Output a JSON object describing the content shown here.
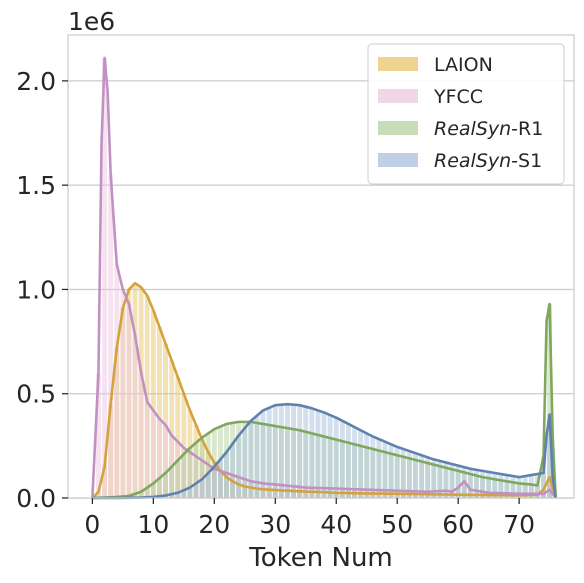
{
  "chart_data": {
    "type": "histogram+kde",
    "title": "",
    "xlabel": "Token Num",
    "ylabel": "",
    "y_offset_label": "1e6",
    "xlim": [
      -4,
      79
    ],
    "ylim": [
      0,
      2.22
    ],
    "xticks": [
      0,
      10,
      20,
      30,
      40,
      50,
      60,
      70
    ],
    "xtick_labels": [
      "0",
      "10",
      "20",
      "30",
      "40",
      "50",
      "60",
      "70"
    ],
    "yticks": [
      0.0,
      0.5,
      1.0,
      1.5,
      2.0
    ],
    "ytick_labels": [
      "0.0",
      "0.5",
      "1.0",
      "1.5",
      "2.0"
    ],
    "grid": true,
    "legend_position": "top-right",
    "series": [
      {
        "name": "LAION",
        "legend_parts": [
          {
            "text": "LAION",
            "italic": false
          }
        ],
        "fill": "#e8c56a",
        "line": "#d4a23c",
        "x": [
          0,
          1,
          2,
          3,
          4,
          5,
          6,
          7,
          8,
          9,
          10,
          11,
          12,
          13,
          14,
          15,
          16,
          17,
          18,
          19,
          20,
          21,
          22,
          23,
          24,
          25,
          26,
          27,
          28,
          29,
          30,
          32,
          34,
          36,
          38,
          40,
          45,
          50,
          55,
          60,
          65,
          70,
          73,
          74,
          75,
          76
        ],
        "values": [
          0.0,
          0.03,
          0.15,
          0.45,
          0.72,
          0.91,
          1.0,
          1.03,
          1.01,
          0.97,
          0.9,
          0.82,
          0.74,
          0.66,
          0.58,
          0.5,
          0.42,
          0.35,
          0.28,
          0.22,
          0.17,
          0.13,
          0.1,
          0.08,
          0.065,
          0.055,
          0.05,
          0.045,
          0.042,
          0.04,
          0.038,
          0.035,
          0.032,
          0.03,
          0.028,
          0.025,
          0.022,
          0.02,
          0.018,
          0.016,
          0.014,
          0.013,
          0.015,
          0.04,
          0.1,
          0.0
        ]
      },
      {
        "name": "YFCC",
        "legend_parts": [
          {
            "text": "YFCC",
            "italic": false
          }
        ],
        "fill": "#ecc7e2",
        "line": "#c191c4",
        "x": [
          0,
          1,
          1.5,
          2,
          2.5,
          3,
          4,
          5,
          6,
          7,
          8,
          9,
          10,
          11,
          12,
          13,
          14,
          15,
          16,
          17,
          18,
          20,
          22,
          24,
          26,
          28,
          30,
          35,
          40,
          45,
          50,
          55,
          58,
          59,
          60,
          61,
          62,
          65,
          70,
          74,
          75,
          76
        ],
        "values": [
          0.0,
          0.6,
          1.7,
          2.11,
          1.95,
          1.55,
          1.12,
          1.0,
          0.93,
          0.78,
          0.6,
          0.46,
          0.42,
          0.38,
          0.35,
          0.3,
          0.27,
          0.24,
          0.22,
          0.2,
          0.18,
          0.14,
          0.12,
          0.1,
          0.08,
          0.07,
          0.065,
          0.05,
          0.045,
          0.04,
          0.035,
          0.03,
          0.035,
          0.03,
          0.05,
          0.08,
          0.04,
          0.025,
          0.02,
          0.02,
          0.04,
          0.0
        ]
      },
      {
        "name": "RealSyn-R1",
        "legend_parts": [
          {
            "text": "RealSyn",
            "italic": true
          },
          {
            "text": "-R1",
            "italic": false
          }
        ],
        "fill": "#b5d1a0",
        "line": "#7fa85c",
        "x": [
          0,
          2,
          4,
          6,
          8,
          10,
          12,
          14,
          16,
          18,
          20,
          22,
          24,
          26,
          28,
          30,
          32,
          34,
          36,
          38,
          40,
          42,
          44,
          46,
          48,
          50,
          52,
          54,
          56,
          58,
          60,
          62,
          64,
          66,
          68,
          70,
          72,
          73,
          74,
          74.5,
          75,
          75.5,
          76
        ],
        "values": [
          0.0,
          0.002,
          0.005,
          0.01,
          0.03,
          0.07,
          0.12,
          0.18,
          0.24,
          0.29,
          0.33,
          0.355,
          0.365,
          0.365,
          0.355,
          0.345,
          0.335,
          0.325,
          0.31,
          0.295,
          0.28,
          0.265,
          0.25,
          0.235,
          0.22,
          0.205,
          0.19,
          0.175,
          0.16,
          0.145,
          0.13,
          0.115,
          0.1,
          0.09,
          0.08,
          0.07,
          0.065,
          0.06,
          0.2,
          0.85,
          0.93,
          0.3,
          0.0
        ]
      },
      {
        "name": "RealSyn-S1",
        "legend_parts": [
          {
            "text": "RealSyn",
            "italic": true
          },
          {
            "text": "-S1",
            "italic": false
          }
        ],
        "fill": "#a9c0dd",
        "line": "#5f82ad",
        "x": [
          0,
          4,
          8,
          10,
          12,
          14,
          16,
          18,
          20,
          22,
          24,
          26,
          28,
          30,
          32,
          34,
          36,
          38,
          40,
          42,
          44,
          46,
          48,
          50,
          52,
          54,
          56,
          58,
          60,
          62,
          64,
          66,
          68,
          70,
          72,
          73,
          74,
          74.5,
          75,
          75.5,
          76
        ],
        "values": [
          0.0,
          0.0,
          0.002,
          0.005,
          0.012,
          0.025,
          0.05,
          0.09,
          0.15,
          0.22,
          0.3,
          0.37,
          0.42,
          0.445,
          0.45,
          0.445,
          0.43,
          0.41,
          0.385,
          0.355,
          0.325,
          0.295,
          0.27,
          0.245,
          0.225,
          0.205,
          0.185,
          0.17,
          0.155,
          0.14,
          0.13,
          0.12,
          0.11,
          0.1,
          0.11,
          0.115,
          0.12,
          0.3,
          0.4,
          0.1,
          0.0
        ]
      }
    ]
  }
}
